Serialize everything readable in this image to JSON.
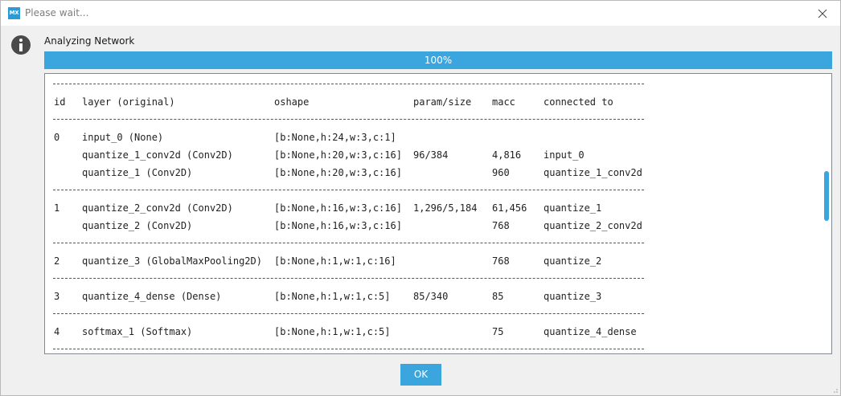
{
  "window": {
    "app_icon_text": "MX",
    "title": "Please wait..."
  },
  "status": {
    "label": "Analyzing Network",
    "progress_percent": 100,
    "progress_text": "100%"
  },
  "table": {
    "headers": {
      "id": "id",
      "layer": "layer (original)",
      "oshape": "oshape",
      "param": "param/size",
      "macc": "macc",
      "connected": "connected to"
    },
    "separator": "----------------------------------------------------------------------------------------------------",
    "groups": [
      {
        "rows": [
          {
            "id": "0",
            "layer": "input_0 (None)",
            "oshape": "[b:None,h:24,w:3,c:1]",
            "param": "",
            "macc": "",
            "connected": ""
          },
          {
            "id": "",
            "layer": "quantize_1_conv2d (Conv2D)",
            "oshape": "[b:None,h:20,w:3,c:16]",
            "param": "96/384",
            "macc": "4,816",
            "connected": "input_0"
          },
          {
            "id": "",
            "layer": "quantize_1 (Conv2D)",
            "oshape": "[b:None,h:20,w:3,c:16]",
            "param": "",
            "macc": "960",
            "connected": "quantize_1_conv2d"
          }
        ]
      },
      {
        "rows": [
          {
            "id": "1",
            "layer": "quantize_2_conv2d (Conv2D)",
            "oshape": "[b:None,h:16,w:3,c:16]",
            "param": "1,296/5,184",
            "macc": "61,456",
            "connected": "quantize_1"
          },
          {
            "id": "",
            "layer": "quantize_2 (Conv2D)",
            "oshape": "[b:None,h:16,w:3,c:16]",
            "param": "",
            "macc": "768",
            "connected": "quantize_2_conv2d"
          }
        ]
      },
      {
        "rows": [
          {
            "id": "2",
            "layer": "quantize_3 (GlobalMaxPooling2D)",
            "oshape": "[b:None,h:1,w:1,c:16]",
            "param": "",
            "macc": "768",
            "connected": "quantize_2"
          }
        ]
      },
      {
        "rows": [
          {
            "id": "3",
            "layer": "quantize_4_dense (Dense)",
            "oshape": "[b:None,h:1,w:1,c:5]",
            "param": "85/340",
            "macc": "85",
            "connected": "quantize_3"
          }
        ]
      },
      {
        "rows": [
          {
            "id": "4",
            "layer": "softmax_1 (Softmax)",
            "oshape": "[b:None,h:1,w:1,c:5]",
            "param": "",
            "macc": "75",
            "connected": "quantize_4_dense"
          }
        ]
      }
    ]
  },
  "scroll": {
    "position_fraction": 0.5
  },
  "buttons": {
    "ok_label": "OK"
  },
  "colors": {
    "accent": "#3aa6dd",
    "title_text": "#7d7d7d"
  },
  "icons": {
    "app": "mx-app-icon",
    "close": "close-icon",
    "info": "info-icon"
  }
}
